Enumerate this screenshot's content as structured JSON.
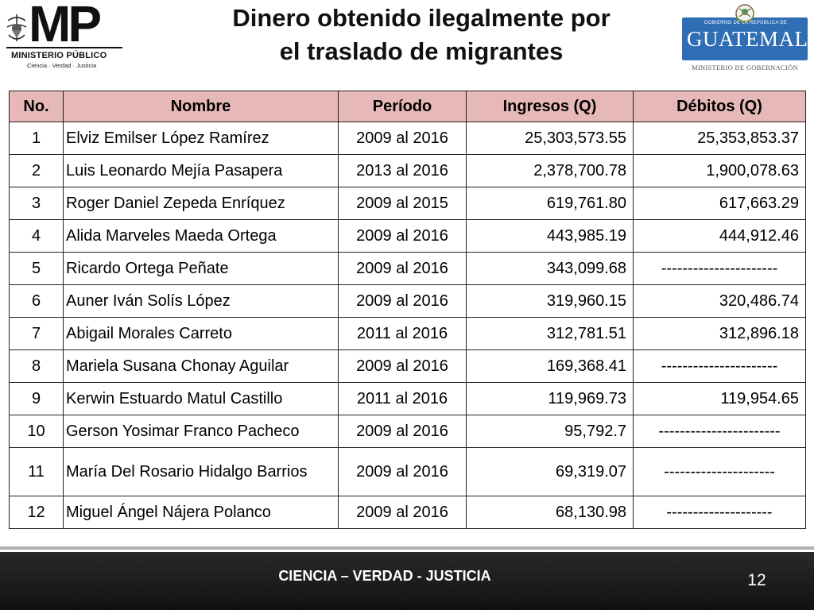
{
  "header": {
    "mp_logo": {
      "letters": "MP",
      "name": "MINISTERIO PÚBLICO",
      "motto": "Ciencia · Verdad · Justicia"
    },
    "title_line1": "Dinero obtenido ilegalmente por",
    "title_line2": "el traslado de migrantes",
    "gt_logo": {
      "government": "GOBIERNO DE LA REPÚBLICA DE",
      "country": "GUATEMALA",
      "ministry": "MINISTERIO DE GOBERNACIÓN",
      "color": "#2f6db5"
    }
  },
  "table": {
    "headers": [
      "No.",
      "Nombre",
      "Período",
      "Ingresos (Q)",
      "Débitos (Q)"
    ],
    "header_color": "#e6b9b8",
    "rows": [
      {
        "no": "1",
        "nombre": "Elviz Emilser López Ramírez",
        "periodo": "2009 al 2016",
        "ingresos": "25,303,573.55",
        "debitos": "25,353,853.37"
      },
      {
        "no": "2",
        "nombre": "Luis Leonardo Mejía Pasapera",
        "periodo": "2013 al 2016",
        "ingresos": "2,378,700.78",
        "debitos": "1,900,078.63"
      },
      {
        "no": "3",
        "nombre": "Roger Daniel Zepeda Enríquez",
        "periodo": "2009 al 2015",
        "ingresos": "619,761.80",
        "debitos": "617,663.29"
      },
      {
        "no": "4",
        "nombre": "Alida Marveles Maeda Ortega",
        "periodo": "2009 al 2016",
        "ingresos": "443,985.19",
        "debitos": "444,912.46"
      },
      {
        "no": "5",
        "nombre": "Ricardo Ortega Peñate",
        "periodo": "2009 al 2016",
        "ingresos": "343,099.68",
        "debitos": "----------------------"
      },
      {
        "no": "6",
        "nombre": "Auner Iván Solís López",
        "periodo": "2009 al 2016",
        "ingresos": "319,960.15",
        "debitos": "320,486.74"
      },
      {
        "no": "7",
        "nombre": "Abigail Morales Carreto",
        "periodo": "2011 al 2016",
        "ingresos": "312,781.51",
        "debitos": "312,896.18"
      },
      {
        "no": "8",
        "nombre": "Mariela Susana Chonay Aguilar",
        "periodo": "2009 al 2016",
        "ingresos": "169,368.41",
        "debitos": "----------------------"
      },
      {
        "no": "9",
        "nombre": "Kerwin Estuardo Matul Castillo",
        "periodo": "2011 al 2016",
        "ingresos": "119,969.73",
        "debitos": "119,954.65"
      },
      {
        "no": "10",
        "nombre": "Gerson Yosimar Franco Pacheco",
        "periodo": "2009 al 2016",
        "ingresos": "95,792.7",
        "debitos": "-----------------------"
      },
      {
        "no": "11",
        "nombre": "María Del Rosario Hidalgo Barrios",
        "periodo": "2009 al 2016",
        "ingresos": "69,319.07",
        "debitos": "---------------------"
      },
      {
        "no": "12",
        "nombre": "Miguel Ángel Nájera Polanco",
        "periodo": "2009 al 2016",
        "ingresos": "68,130.98",
        "debitos": "--------------------"
      }
    ]
  },
  "footer": {
    "motto": "CIENCIA – VERDAD - JUSTICIA",
    "page_number": "12"
  }
}
